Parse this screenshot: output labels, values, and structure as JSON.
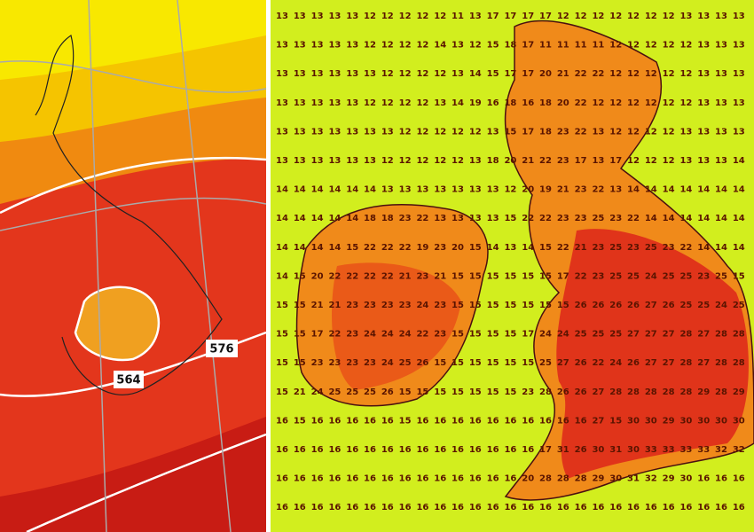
{
  "left_map": {
    "contour_labels": [
      "564",
      "576"
    ]
  },
  "right_map": {
    "grid": [
      [
        13,
        13,
        13,
        13,
        13,
        12,
        12,
        12,
        12,
        12,
        11,
        13,
        17,
        17,
        17,
        17,
        12,
        12,
        12,
        12,
        12,
        12,
        12,
        13,
        13,
        13,
        13
      ],
      [
        13,
        13,
        13,
        13,
        13,
        12,
        12,
        12,
        12,
        14,
        13,
        12,
        15,
        18,
        17,
        11,
        11,
        11,
        11,
        12,
        12,
        12,
        12,
        12,
        13,
        13,
        13
      ],
      [
        13,
        13,
        13,
        13,
        13,
        13,
        12,
        12,
        12,
        12,
        13,
        14,
        15,
        17,
        17,
        20,
        21,
        22,
        22,
        12,
        12,
        12,
        12,
        12,
        13,
        13,
        13
      ],
      [
        13,
        13,
        13,
        13,
        13,
        12,
        12,
        12,
        12,
        13,
        14,
        19,
        16,
        18,
        16,
        18,
        20,
        22,
        12,
        12,
        12,
        12,
        12,
        12,
        13,
        13,
        13
      ],
      [
        13,
        13,
        13,
        13,
        13,
        13,
        13,
        12,
        12,
        12,
        12,
        12,
        13,
        15,
        17,
        18,
        23,
        22,
        13,
        12,
        12,
        12,
        12,
        13,
        13,
        13,
        13
      ],
      [
        13,
        13,
        13,
        13,
        13,
        13,
        12,
        12,
        12,
        12,
        12,
        13,
        18,
        20,
        21,
        22,
        23,
        17,
        13,
        17,
        12,
        12,
        12,
        13,
        13,
        13,
        14
      ],
      [
        14,
        14,
        14,
        14,
        14,
        14,
        13,
        13,
        13,
        13,
        13,
        13,
        13,
        12,
        20,
        19,
        21,
        23,
        22,
        13,
        14,
        14,
        14,
        14,
        14,
        14,
        14
      ],
      [
        14,
        14,
        14,
        14,
        14,
        18,
        18,
        23,
        22,
        13,
        13,
        13,
        13,
        15,
        22,
        22,
        23,
        23,
        25,
        23,
        22,
        14,
        14,
        14,
        14,
        14,
        14
      ],
      [
        14,
        14,
        14,
        14,
        15,
        22,
        22,
        22,
        19,
        23,
        20,
        15,
        14,
        13,
        14,
        15,
        22,
        21,
        23,
        25,
        23,
        25,
        23,
        22,
        14,
        14,
        14
      ],
      [
        14,
        15,
        20,
        22,
        22,
        22,
        22,
        21,
        23,
        21,
        15,
        15,
        15,
        15,
        15,
        15,
        17,
        22,
        23,
        25,
        25,
        24,
        25,
        25,
        23,
        25,
        15
      ],
      [
        15,
        15,
        21,
        21,
        23,
        23,
        23,
        23,
        24,
        23,
        15,
        15,
        15,
        15,
        15,
        15,
        15,
        26,
        26,
        26,
        26,
        27,
        26,
        25,
        25,
        24,
        25
      ],
      [
        15,
        15,
        17,
        22,
        23,
        24,
        24,
        24,
        22,
        23,
        15,
        15,
        15,
        15,
        17,
        24,
        24,
        25,
        25,
        25,
        27,
        27,
        27,
        28,
        27,
        28,
        28
      ],
      [
        15,
        15,
        23,
        23,
        23,
        23,
        24,
        25,
        26,
        15,
        15,
        15,
        15,
        15,
        15,
        25,
        27,
        26,
        22,
        24,
        26,
        27,
        27,
        28,
        27,
        28,
        28
      ],
      [
        15,
        21,
        24,
        25,
        25,
        25,
        26,
        15,
        15,
        15,
        15,
        15,
        15,
        15,
        23,
        28,
        26,
        26,
        27,
        28,
        28,
        28,
        28,
        28,
        29,
        28,
        29
      ],
      [
        16,
        15,
        16,
        16,
        16,
        16,
        16,
        15,
        16,
        16,
        16,
        16,
        16,
        16,
        16,
        16,
        16,
        16,
        27,
        15,
        30,
        30,
        29,
        30,
        30,
        30,
        30
      ],
      [
        16,
        16,
        16,
        16,
        16,
        16,
        16,
        16,
        16,
        16,
        16,
        16,
        16,
        16,
        16,
        17,
        31,
        26,
        30,
        31,
        30,
        33,
        33,
        33,
        33,
        32,
        32
      ],
      [
        16,
        16,
        16,
        16,
        16,
        16,
        16,
        16,
        16,
        16,
        16,
        16,
        16,
        16,
        20,
        28,
        28,
        28,
        29,
        30,
        31,
        32,
        29,
        30,
        16,
        16,
        16
      ],
      [
        16,
        16,
        16,
        16,
        16,
        16,
        16,
        16,
        16,
        16,
        16,
        16,
        16,
        16,
        16,
        16,
        16,
        16,
        16,
        16,
        16,
        16,
        16,
        16,
        16,
        16,
        16
      ]
    ]
  }
}
